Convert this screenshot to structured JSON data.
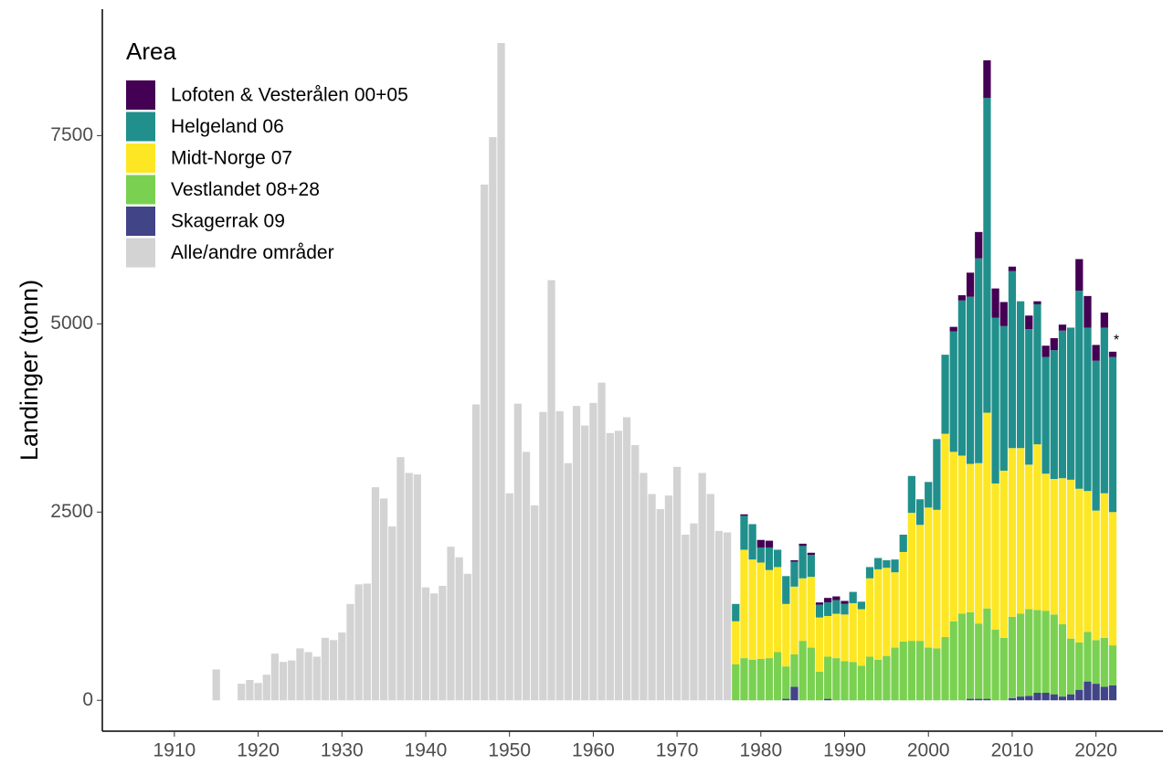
{
  "chart_data": {
    "type": "stacked-bar",
    "y_label": "Landinger (tonn)",
    "legend_title": "Area",
    "x": [
      1915,
      1916,
      1917,
      1918,
      1919,
      1920,
      1921,
      1922,
      1923,
      1924,
      1925,
      1926,
      1927,
      1928,
      1929,
      1930,
      1931,
      1932,
      1933,
      1934,
      1935,
      1936,
      1937,
      1938,
      1939,
      1940,
      1941,
      1942,
      1943,
      1944,
      1945,
      1946,
      1947,
      1948,
      1949,
      1950,
      1951,
      1952,
      1953,
      1954,
      1955,
      1956,
      1957,
      1958,
      1959,
      1960,
      1961,
      1962,
      1963,
      1964,
      1965,
      1966,
      1967,
      1968,
      1969,
      1970,
      1971,
      1972,
      1973,
      1974,
      1975,
      1976,
      1977,
      1978,
      1979,
      1980,
      1981,
      1982,
      1983,
      1984,
      1985,
      1986,
      1987,
      1988,
      1989,
      1990,
      1991,
      1992,
      1993,
      1994,
      1995,
      1996,
      1997,
      1998,
      1999,
      2000,
      2001,
      2002,
      2003,
      2004,
      2005,
      2006,
      2007,
      2008,
      2009,
      2010,
      2011,
      2012,
      2013,
      2014,
      2015,
      2016,
      2017,
      2018,
      2019,
      2020,
      2021,
      2022
    ],
    "series": [
      {
        "name": "Lofoten & Vesterålen 00+05",
        "color": "#440154",
        "values": [
          null,
          null,
          null,
          null,
          null,
          null,
          null,
          null,
          null,
          null,
          null,
          null,
          null,
          null,
          null,
          null,
          null,
          null,
          null,
          null,
          null,
          null,
          null,
          null,
          null,
          null,
          null,
          null,
          null,
          null,
          null,
          null,
          null,
          null,
          null,
          null,
          null,
          null,
          null,
          null,
          null,
          null,
          null,
          null,
          null,
          null,
          null,
          null,
          null,
          null,
          null,
          null,
          null,
          null,
          null,
          null,
          null,
          null,
          null,
          null,
          null,
          null,
          0,
          20,
          0,
          100,
          90,
          0,
          0,
          20,
          30,
          30,
          30,
          60,
          50,
          40,
          0,
          0,
          0,
          0,
          0,
          0,
          0,
          0,
          0,
          0,
          0,
          0,
          60,
          70,
          320,
          350,
          500,
          390,
          320,
          60,
          0,
          180,
          40,
          150,
          160,
          80,
          0,
          420,
          420,
          210,
          200,
          70
        ]
      },
      {
        "name": "Helgeland 06",
        "color": "#21908c",
        "values": [
          null,
          null,
          null,
          null,
          null,
          null,
          null,
          null,
          null,
          null,
          null,
          null,
          null,
          null,
          null,
          null,
          null,
          null,
          null,
          null,
          null,
          null,
          null,
          null,
          null,
          null,
          null,
          null,
          null,
          null,
          null,
          null,
          null,
          null,
          null,
          null,
          null,
          null,
          null,
          null,
          null,
          null,
          null,
          null,
          null,
          null,
          null,
          null,
          null,
          null,
          null,
          null,
          null,
          null,
          null,
          null,
          null,
          null,
          null,
          null,
          null,
          null,
          230,
          450,
          470,
          200,
          300,
          230,
          370,
          330,
          430,
          290,
          170,
          180,
          180,
          140,
          150,
          100,
          150,
          150,
          100,
          170,
          230,
          490,
          340,
          340,
          940,
          1050,
          1600,
          2060,
          2220,
          2720,
          4180,
          2200,
          1920,
          2350,
          1950,
          1800,
          1860,
          1550,
          1710,
          1960,
          2020,
          2630,
          2170,
          1990,
          2200,
          2060
        ]
      },
      {
        "name": "Midt-Norge 07",
        "color": "#fde725",
        "values": [
          null,
          null,
          null,
          null,
          null,
          null,
          null,
          null,
          null,
          null,
          null,
          null,
          null,
          null,
          null,
          null,
          null,
          null,
          null,
          null,
          null,
          null,
          null,
          null,
          null,
          null,
          null,
          null,
          null,
          null,
          null,
          null,
          null,
          null,
          null,
          null,
          null,
          null,
          null,
          null,
          null,
          null,
          null,
          null,
          null,
          null,
          null,
          null,
          null,
          null,
          null,
          null,
          null,
          null,
          null,
          null,
          null,
          null,
          null,
          null,
          null,
          null,
          570,
          1440,
          1330,
          1280,
          1170,
          1130,
          830,
          900,
          830,
          940,
          720,
          540,
          590,
          620,
          780,
          750,
          1040,
          1200,
          1170,
          1000,
          1190,
          1700,
          1540,
          1860,
          1840,
          2700,
          2250,
          2100,
          1970,
          2130,
          2600,
          1940,
          2220,
          2240,
          2200,
          1920,
          2200,
          1820,
          1800,
          1940,
          2110,
          2040,
          1870,
          1720,
          1920,
          1770
        ]
      },
      {
        "name": "Vestlandet 08+28",
        "color": "#7ad151",
        "values": [
          null,
          null,
          null,
          null,
          null,
          null,
          null,
          null,
          null,
          null,
          null,
          null,
          null,
          null,
          null,
          null,
          null,
          null,
          null,
          null,
          null,
          null,
          null,
          null,
          null,
          null,
          null,
          null,
          null,
          null,
          null,
          null,
          null,
          null,
          null,
          null,
          null,
          null,
          null,
          null,
          null,
          null,
          null,
          null,
          null,
          null,
          null,
          null,
          null,
          null,
          null,
          null,
          null,
          null,
          null,
          null,
          null,
          null,
          null,
          null,
          null,
          null,
          480,
          560,
          540,
          550,
          560,
          640,
          430,
          430,
          790,
          700,
          380,
          560,
          560,
          520,
          510,
          460,
          580,
          540,
          590,
          700,
          780,
          790,
          790,
          700,
          690,
          840,
          1050,
          1150,
          1150,
          1000,
          1200,
          940,
          830,
          1080,
          1100,
          1150,
          1100,
          1090,
          1060,
          960,
          740,
          630,
          660,
          580,
          650,
          530
        ]
      },
      {
        "name": "Skagerrak 09",
        "color": "#414487",
        "values": [
          null,
          null,
          null,
          null,
          null,
          null,
          null,
          null,
          null,
          null,
          null,
          null,
          null,
          null,
          null,
          null,
          null,
          null,
          null,
          null,
          null,
          null,
          null,
          null,
          null,
          null,
          null,
          null,
          null,
          null,
          null,
          null,
          null,
          null,
          null,
          null,
          null,
          null,
          null,
          null,
          null,
          null,
          null,
          null,
          null,
          null,
          null,
          null,
          null,
          null,
          null,
          null,
          null,
          null,
          null,
          null,
          null,
          null,
          null,
          null,
          null,
          null,
          0,
          0,
          0,
          0,
          0,
          0,
          20,
          180,
          0,
          0,
          0,
          20,
          0,
          0,
          0,
          0,
          0,
          0,
          0,
          0,
          0,
          0,
          0,
          0,
          0,
          0,
          0,
          0,
          20,
          20,
          20,
          0,
          0,
          30,
          50,
          60,
          100,
          100,
          80,
          50,
          80,
          140,
          250,
          220,
          180,
          200
        ]
      },
      {
        "name": "Alle/andre områder",
        "color": "#d3d3d3",
        "values": [
          410,
          null,
          null,
          220,
          270,
          230,
          340,
          620,
          510,
          530,
          690,
          640,
          580,
          830,
          800,
          900,
          1280,
          1540,
          1550,
          2830,
          2680,
          2310,
          3230,
          3020,
          3000,
          1500,
          1420,
          1520,
          2040,
          1900,
          1680,
          3930,
          6850,
          7480,
          8730,
          2750,
          3940,
          3300,
          2590,
          3830,
          5580,
          3840,
          3150,
          3910,
          3650,
          3950,
          4220,
          3550,
          3580,
          3760,
          3390,
          3020,
          2740,
          2540,
          2720,
          3100,
          2200,
          2350,
          3020,
          2740,
          2250,
          2230,
          null,
          null,
          null,
          null,
          null,
          null,
          null,
          null,
          null,
          null,
          null,
          null,
          null,
          null,
          null,
          null,
          null,
          null,
          null,
          null,
          null,
          null,
          null,
          null,
          null,
          null,
          null,
          null,
          null,
          null,
          null,
          null,
          null,
          null,
          null,
          null,
          null,
          null,
          null,
          null,
          null,
          null,
          null,
          null,
          null,
          null
        ]
      }
    ],
    "annotations": [
      {
        "text": "*",
        "x": 2022
      }
    ],
    "xlim": [
      1901.4,
      2028
    ],
    "xticks": [
      1910,
      1920,
      1930,
      1940,
      1950,
      1960,
      1970,
      1980,
      1990,
      2000,
      2010,
      2020
    ],
    "ylim": [
      -410,
      9180
    ],
    "yticks": [
      0,
      2500,
      5000,
      7500
    ]
  }
}
